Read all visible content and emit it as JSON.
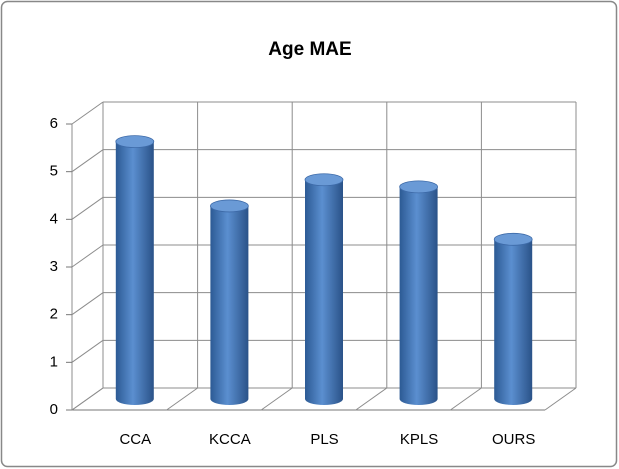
{
  "chart_data": {
    "type": "bar",
    "title": "Age MAE",
    "categories": [
      "CCA",
      "KCCA",
      "PLS",
      "KPLS",
      "OURS"
    ],
    "values": [
      5.4,
      4.05,
      4.6,
      4.45,
      3.35
    ],
    "color": "#4a7ebb",
    "ylim": [
      0,
      6
    ],
    "yticks": [
      0,
      1,
      2,
      3,
      4,
      5,
      6
    ],
    "grid": true
  }
}
